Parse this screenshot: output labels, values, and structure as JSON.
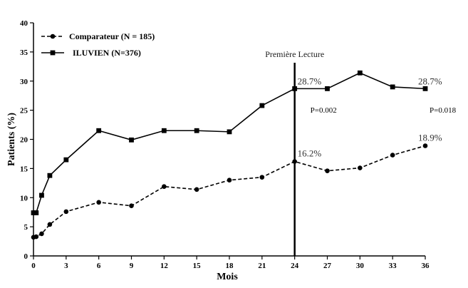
{
  "chart_data": {
    "type": "line",
    "xlabel": "Mois",
    "ylabel": "Patients (%)",
    "xlim": [
      0,
      36
    ],
    "ylim": [
      0,
      40
    ],
    "xticks": [
      0,
      3,
      6,
      9,
      12,
      15,
      18,
      21,
      24,
      27,
      30,
      33,
      36
    ],
    "yticks": [
      0,
      5,
      10,
      15,
      20,
      25,
      30,
      35,
      40
    ],
    "legend_position": "top-left",
    "series": [
      {
        "name": "Comparateur (N = 185)",
        "style": "dashed",
        "marker": "circle",
        "color": "#000000",
        "x": [
          0,
          0.25,
          0.75,
          1.5,
          3,
          6,
          9,
          12,
          15,
          18,
          21,
          24,
          27,
          30,
          33,
          36
        ],
        "y": [
          3.2,
          3.3,
          3.8,
          5.4,
          7.6,
          9.2,
          8.6,
          11.9,
          11.4,
          13.0,
          13.5,
          16.2,
          14.6,
          15.1,
          17.3,
          18.9
        ]
      },
      {
        "name": "ILUVIEN (N=376)",
        "style": "solid",
        "marker": "square",
        "color": "#000000",
        "x": [
          0,
          0.25,
          0.75,
          1.5,
          3,
          6,
          9,
          12,
          15,
          18,
          21,
          24,
          27,
          30,
          33,
          36
        ],
        "y": [
          7.4,
          7.4,
          10.4,
          13.8,
          16.5,
          21.5,
          19.9,
          21.5,
          21.5,
          21.3,
          25.8,
          28.7,
          28.7,
          31.4,
          29.0,
          28.7
        ]
      }
    ],
    "vline": {
      "x": 24,
      "label": "Première Lecture"
    },
    "annotations": [
      {
        "text": "28.7%",
        "x": 24,
        "y": 28.7,
        "class": "anno-big"
      },
      {
        "text": "28.7%",
        "x": 36,
        "y": 28.7,
        "class": "anno-big"
      },
      {
        "text": "16.2%",
        "x": 24,
        "y": 16.2,
        "class": "anno-big"
      },
      {
        "text": "18.9%",
        "x": 36,
        "y": 18.9,
        "class": "anno-big"
      },
      {
        "text": "P=0.002",
        "x": 24,
        "y": 24.6,
        "class": "pval"
      },
      {
        "text": "P=0.018",
        "x": 36,
        "y": 24.6,
        "class": "pval"
      }
    ]
  }
}
